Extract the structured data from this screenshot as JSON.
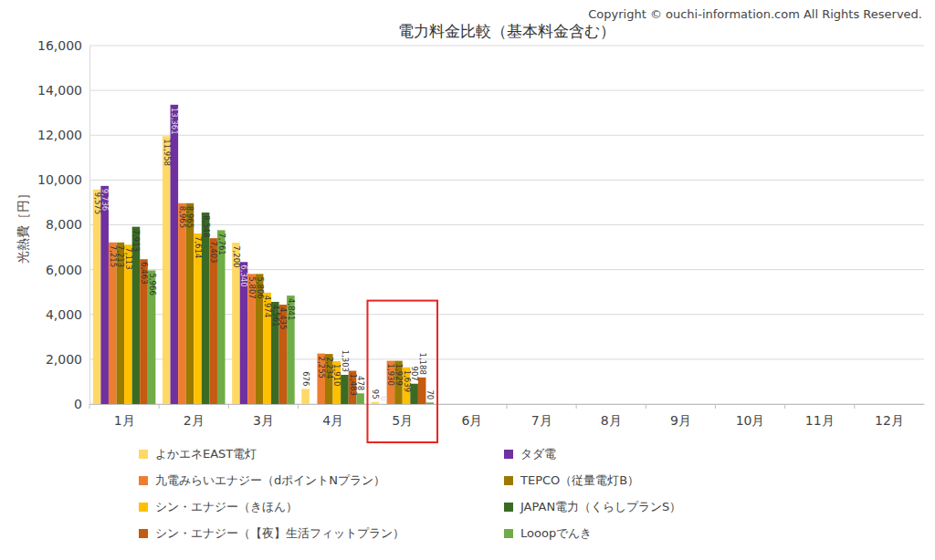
{
  "chart_data": {
    "type": "bar",
    "title": "電力料金比較（基本料金含む）",
    "annotation": "Copyright © ouchi-information.com All Rights Reserved.",
    "y_label": "光熱費［円］",
    "categories": [
      "1月",
      "2月",
      "3月",
      "4月",
      "5月",
      "6月",
      "7月",
      "8月",
      "9月",
      "10月",
      "11月",
      "12月"
    ],
    "series": [
      {
        "name": "よかエネEAST電灯",
        "color": "#FFD966",
        "values": [
          9575,
          11958,
          7200,
          676,
          95,
          null,
          null,
          null,
          null,
          null,
          null,
          null
        ],
        "value_labels": [
          "9,575",
          "11,958",
          "7,200",
          "676",
          "95",
          null,
          null,
          null,
          null,
          null,
          null,
          null
        ]
      },
      {
        "name": "タダ電",
        "color": "#7030A0",
        "values": [
          9736,
          13361,
          6340,
          null,
          0,
          null,
          null,
          null,
          null,
          null,
          null,
          null
        ],
        "value_labels": [
          "9,736",
          "13,361",
          "6,340",
          null,
          "0",
          null,
          null,
          null,
          null,
          null,
          null,
          null
        ]
      },
      {
        "name": "九電みらいエナジー（dポイントNプラン）",
        "color": "#ED7D31",
        "values": [
          7215,
          8965,
          5807,
          2255,
          1930,
          null,
          null,
          null,
          null,
          null,
          null,
          null
        ],
        "value_labels": [
          "7,215",
          "8,965",
          "5,807",
          "2,255",
          "1,930",
          null,
          null,
          null,
          null,
          null,
          null,
          null
        ]
      },
      {
        "name": "TEPCO（従量電灯B）",
        "color": "#9C7A00",
        "values": [
          7213,
          8965,
          5806,
          2234,
          1929,
          null,
          null,
          null,
          null,
          null,
          null,
          null
        ],
        "value_labels": [
          "7,213",
          "8,965",
          "5,806",
          "2,234",
          "1,929",
          null,
          null,
          null,
          null,
          null,
          null,
          null
        ]
      },
      {
        "name": "シン・エナジー（きほん）",
        "color": "#FFC000",
        "values": [
          7113,
          7614,
          4974,
          1910,
          1639,
          null,
          null,
          null,
          null,
          null,
          null,
          null
        ],
        "value_labels": [
          "7,113",
          "7,614",
          "4,974",
          "1,910",
          "1,639",
          null,
          null,
          null,
          null,
          null,
          null,
          null
        ]
      },
      {
        "name": "JAPAN電力（くらしプランS）",
        "color": "#3A6B24",
        "values": [
          7913,
          8548,
          4561,
          1303,
          907,
          null,
          null,
          null,
          null,
          null,
          null,
          null
        ],
        "value_labels": [
          "7,913",
          "8,548",
          "4,561",
          "1,303",
          "907",
          null,
          null,
          null,
          null,
          null,
          null,
          null
        ]
      },
      {
        "name": "シン・エナジー（【夜】生活フィットプラン）",
        "color": "#C55A11",
        "values": [
          6463,
          7403,
          4435,
          1483,
          1188,
          null,
          null,
          null,
          null,
          null,
          null,
          null
        ],
        "value_labels": [
          "6,463",
          "7,403",
          "4,435",
          "1,483",
          "1,188",
          null,
          null,
          null,
          null,
          null,
          null,
          null
        ]
      },
      {
        "name": "Looopでんき",
        "color": "#70AD47",
        "values": [
          5966,
          7761,
          4841,
          478,
          70,
          null,
          null,
          null,
          null,
          null,
          null,
          null
        ],
        "value_labels": [
          "5,966",
          "7,761",
          "4,841",
          "478",
          "70",
          null,
          null,
          null,
          null,
          null,
          null,
          null
        ]
      }
    ],
    "ylim": [
      0,
      16000
    ],
    "yticks": [
      0,
      {
        "value": 2000,
        "label": "2,000"
      },
      {
        "value": 4000,
        "label": "4,000"
      },
      {
        "value": 6000,
        "label": "6,000"
      },
      {
        "value": 8000,
        "label": "8,000"
      },
      {
        "value": 10000,
        "label": "10,000"
      },
      {
        "value": 12000,
        "label": "12,000"
      },
      {
        "value": 14000,
        "label": "14,000"
      },
      {
        "value": 16000,
        "label": "16,000"
      }
    ],
    "grid": true,
    "legend": "bottom",
    "data_labels": true
  }
}
